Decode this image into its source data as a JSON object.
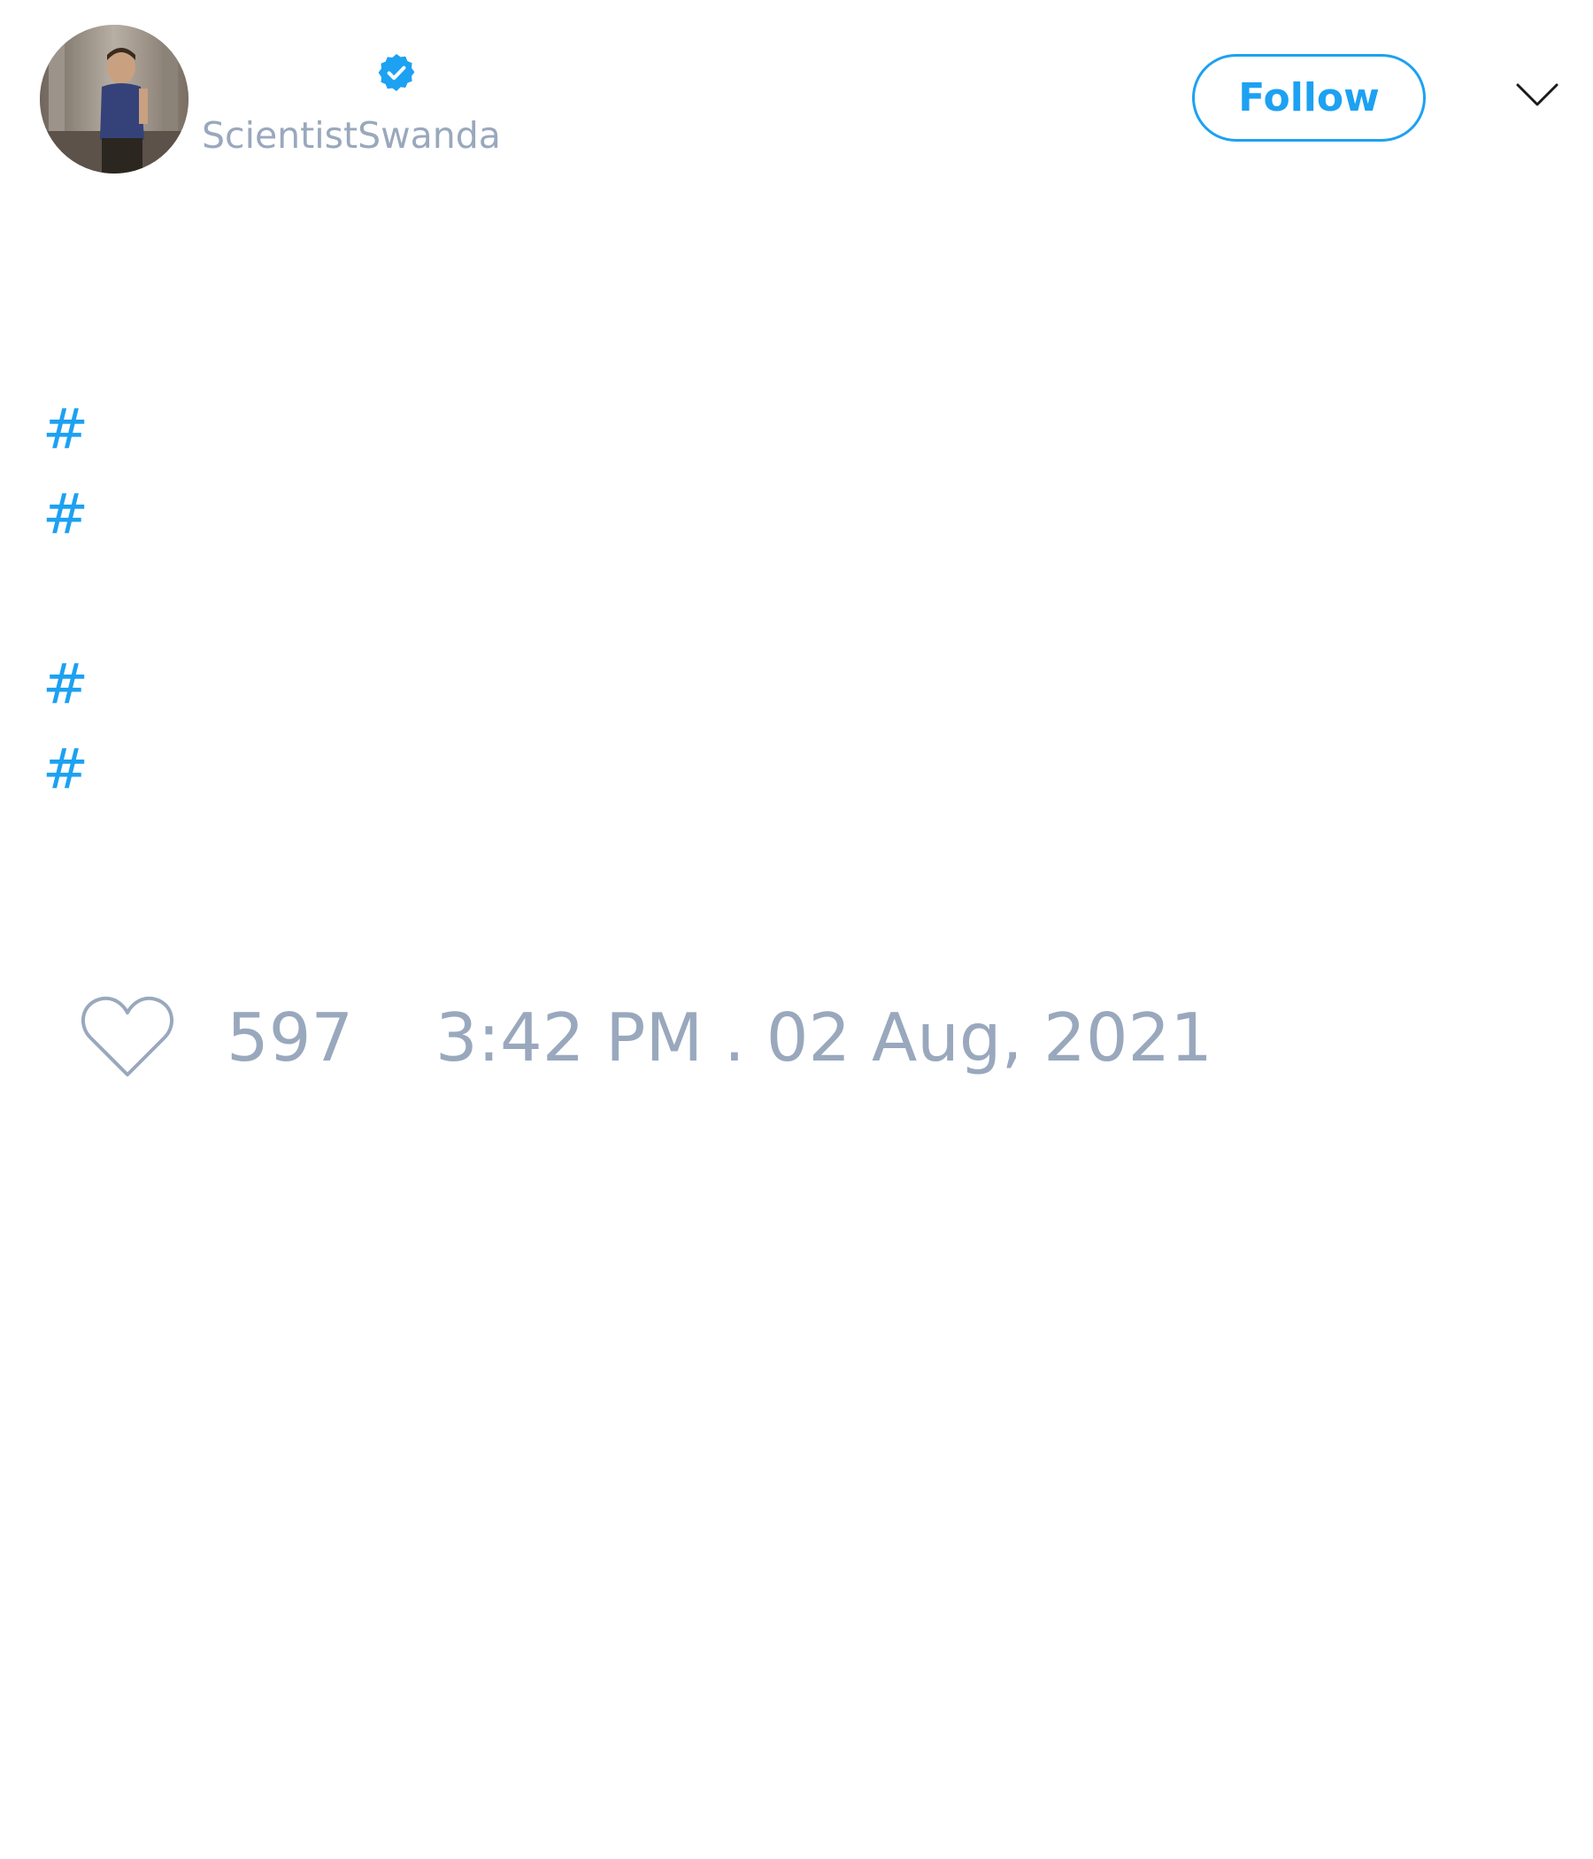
{
  "author": {
    "handle": "ScientistSwanda",
    "verified": true
  },
  "header": {
    "follow_label": "Follow"
  },
  "tweet_body": {
    "hashtags": [
      "#",
      "#",
      "#",
      "#"
    ]
  },
  "engagement": {
    "like_count": "597",
    "timestamp": "3:42 PM . 02 Aug, 2021"
  },
  "icons": {
    "verified": "verified-badge-icon",
    "menu": "chevron-down-icon",
    "like": "heart-icon"
  },
  "colors": {
    "accent": "#1da1f2",
    "muted_text": "#99a8bd",
    "background": "#ffffff"
  }
}
